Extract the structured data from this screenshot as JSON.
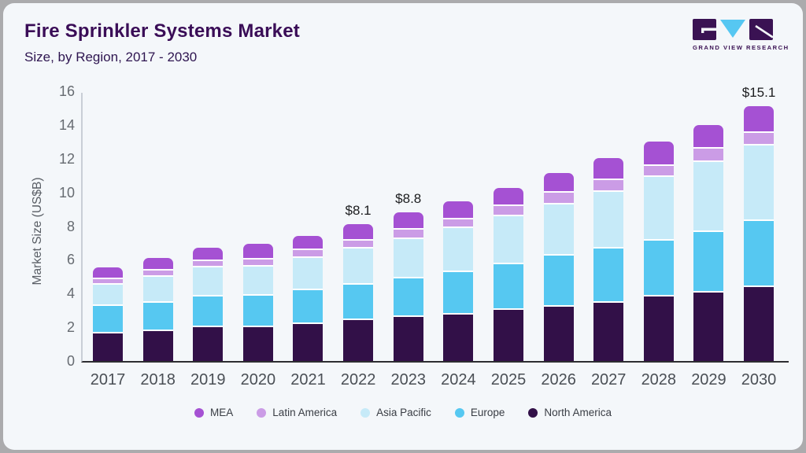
{
  "page": {
    "card_background": "#f4f7fa",
    "frame_border_color": "#ababad"
  },
  "header": {
    "title": "Fire Sprinkler Systems Market",
    "subtitle": "Size, by Region, 2017 - 2030",
    "title_color": "#3a0d57"
  },
  "logo": {
    "name": "grand-view-research-logo",
    "text": "GRAND VIEW RESEARCH",
    "dark_color": "#3a1253",
    "accent_color": "#56c7f2"
  },
  "chart_data": {
    "type": "bar",
    "stacked": true,
    "title": "Fire Sprinkler Systems Market Size, by Region, 2017 - 2030",
    "xlabel": "",
    "ylabel": "Market Size (US$B)",
    "ylim": [
      0,
      16
    ],
    "yticks": [
      0,
      2,
      4,
      6,
      8,
      10,
      12,
      14,
      16
    ],
    "grid": false,
    "legend_position": "bottom",
    "categories": [
      2017,
      2018,
      2019,
      2020,
      2021,
      2022,
      2023,
      2024,
      2025,
      2026,
      2027,
      2028,
      2029,
      2030
    ],
    "series": [
      {
        "name": "North America",
        "color": "#321048",
        "values": [
          1.65,
          1.79,
          2.0,
          2.02,
          2.18,
          2.41,
          2.6,
          2.76,
          3.04,
          3.24,
          3.47,
          3.82,
          4.05,
          4.39
        ]
      },
      {
        "name": "Europe",
        "color": "#56c8f1",
        "values": [
          1.6,
          1.67,
          1.82,
          1.87,
          2.03,
          2.11,
          2.32,
          2.51,
          2.68,
          2.99,
          3.18,
          3.3,
          3.61,
          3.9
        ]
      },
      {
        "name": "Asia Pacific",
        "color": "#c6eaf8",
        "values": [
          1.27,
          1.55,
          1.71,
          1.69,
          1.9,
          2.15,
          2.3,
          2.6,
          2.88,
          3.07,
          3.36,
          3.78,
          4.15,
          4.51
        ]
      },
      {
        "name": "Latin America",
        "color": "#cb9ce6",
        "values": [
          0.33,
          0.36,
          0.39,
          0.45,
          0.48,
          0.49,
          0.58,
          0.54,
          0.59,
          0.67,
          0.71,
          0.66,
          0.81,
          0.75
        ]
      },
      {
        "name": "MEA",
        "color": "#a551d3",
        "values": [
          0.7,
          0.74,
          0.78,
          0.9,
          0.85,
          0.94,
          1.0,
          1.04,
          1.09,
          1.17,
          1.32,
          1.44,
          1.4,
          1.55
        ]
      }
    ],
    "totals": [
      5.55,
      6.11,
      6.7,
      6.93,
      7.44,
      8.1,
      8.8,
      9.45,
      10.28,
      11.14,
      12.04,
      13.0,
      14.02,
      15.1
    ],
    "annotations": [
      {
        "year": 2022,
        "label": "$8.1"
      },
      {
        "year": 2023,
        "label": "$8.8"
      },
      {
        "year": 2030,
        "label": "$15.1"
      }
    ],
    "legend_order": [
      "MEA",
      "Latin America",
      "Asia Pacific",
      "Europe",
      "North America"
    ]
  }
}
